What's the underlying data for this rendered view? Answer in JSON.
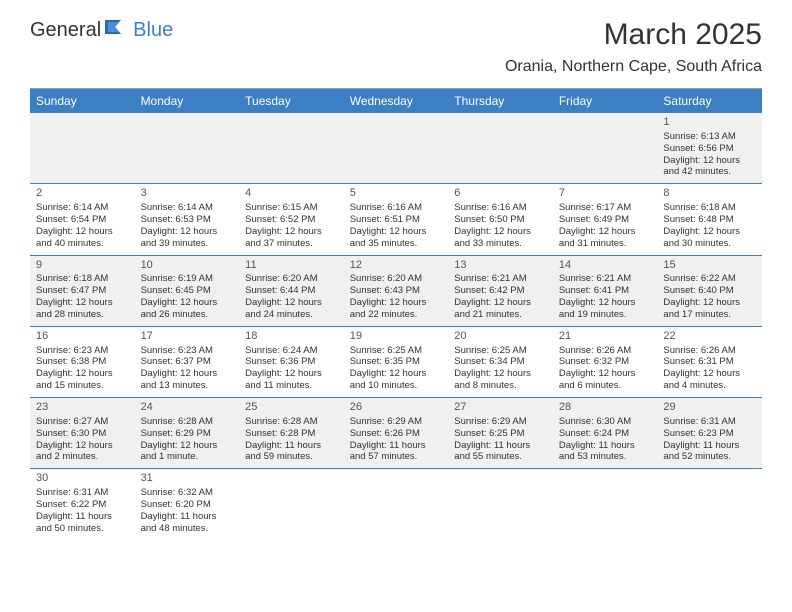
{
  "logo": {
    "general": "General",
    "blue": "Blue"
  },
  "title": "March 2025",
  "location": "Orania, Northern Cape, South Africa",
  "colors": {
    "header_bg": "#3b7fc4",
    "alt_row": "#f0f0f0",
    "border": "#3b7fc4"
  },
  "day_names": [
    "Sunday",
    "Monday",
    "Tuesday",
    "Wednesday",
    "Thursday",
    "Friday",
    "Saturday"
  ],
  "weeks": [
    {
      "alt": true,
      "days": [
        null,
        null,
        null,
        null,
        null,
        null,
        {
          "n": "1",
          "sr": "Sunrise: 6:13 AM",
          "ss": "Sunset: 6:56 PM",
          "dl": "Daylight: 12 hours and 42 minutes."
        }
      ]
    },
    {
      "alt": false,
      "days": [
        {
          "n": "2",
          "sr": "Sunrise: 6:14 AM",
          "ss": "Sunset: 6:54 PM",
          "dl": "Daylight: 12 hours and 40 minutes."
        },
        {
          "n": "3",
          "sr": "Sunrise: 6:14 AM",
          "ss": "Sunset: 6:53 PM",
          "dl": "Daylight: 12 hours and 39 minutes."
        },
        {
          "n": "4",
          "sr": "Sunrise: 6:15 AM",
          "ss": "Sunset: 6:52 PM",
          "dl": "Daylight: 12 hours and 37 minutes."
        },
        {
          "n": "5",
          "sr": "Sunrise: 6:16 AM",
          "ss": "Sunset: 6:51 PM",
          "dl": "Daylight: 12 hours and 35 minutes."
        },
        {
          "n": "6",
          "sr": "Sunrise: 6:16 AM",
          "ss": "Sunset: 6:50 PM",
          "dl": "Daylight: 12 hours and 33 minutes."
        },
        {
          "n": "7",
          "sr": "Sunrise: 6:17 AM",
          "ss": "Sunset: 6:49 PM",
          "dl": "Daylight: 12 hours and 31 minutes."
        },
        {
          "n": "8",
          "sr": "Sunrise: 6:18 AM",
          "ss": "Sunset: 6:48 PM",
          "dl": "Daylight: 12 hours and 30 minutes."
        }
      ]
    },
    {
      "alt": true,
      "days": [
        {
          "n": "9",
          "sr": "Sunrise: 6:18 AM",
          "ss": "Sunset: 6:47 PM",
          "dl": "Daylight: 12 hours and 28 minutes."
        },
        {
          "n": "10",
          "sr": "Sunrise: 6:19 AM",
          "ss": "Sunset: 6:45 PM",
          "dl": "Daylight: 12 hours and 26 minutes."
        },
        {
          "n": "11",
          "sr": "Sunrise: 6:20 AM",
          "ss": "Sunset: 6:44 PM",
          "dl": "Daylight: 12 hours and 24 minutes."
        },
        {
          "n": "12",
          "sr": "Sunrise: 6:20 AM",
          "ss": "Sunset: 6:43 PM",
          "dl": "Daylight: 12 hours and 22 minutes."
        },
        {
          "n": "13",
          "sr": "Sunrise: 6:21 AM",
          "ss": "Sunset: 6:42 PM",
          "dl": "Daylight: 12 hours and 21 minutes."
        },
        {
          "n": "14",
          "sr": "Sunrise: 6:21 AM",
          "ss": "Sunset: 6:41 PM",
          "dl": "Daylight: 12 hours and 19 minutes."
        },
        {
          "n": "15",
          "sr": "Sunrise: 6:22 AM",
          "ss": "Sunset: 6:40 PM",
          "dl": "Daylight: 12 hours and 17 minutes."
        }
      ]
    },
    {
      "alt": false,
      "days": [
        {
          "n": "16",
          "sr": "Sunrise: 6:23 AM",
          "ss": "Sunset: 6:38 PM",
          "dl": "Daylight: 12 hours and 15 minutes."
        },
        {
          "n": "17",
          "sr": "Sunrise: 6:23 AM",
          "ss": "Sunset: 6:37 PM",
          "dl": "Daylight: 12 hours and 13 minutes."
        },
        {
          "n": "18",
          "sr": "Sunrise: 6:24 AM",
          "ss": "Sunset: 6:36 PM",
          "dl": "Daylight: 12 hours and 11 minutes."
        },
        {
          "n": "19",
          "sr": "Sunrise: 6:25 AM",
          "ss": "Sunset: 6:35 PM",
          "dl": "Daylight: 12 hours and 10 minutes."
        },
        {
          "n": "20",
          "sr": "Sunrise: 6:25 AM",
          "ss": "Sunset: 6:34 PM",
          "dl": "Daylight: 12 hours and 8 minutes."
        },
        {
          "n": "21",
          "sr": "Sunrise: 6:26 AM",
          "ss": "Sunset: 6:32 PM",
          "dl": "Daylight: 12 hours and 6 minutes."
        },
        {
          "n": "22",
          "sr": "Sunrise: 6:26 AM",
          "ss": "Sunset: 6:31 PM",
          "dl": "Daylight: 12 hours and 4 minutes."
        }
      ]
    },
    {
      "alt": true,
      "days": [
        {
          "n": "23",
          "sr": "Sunrise: 6:27 AM",
          "ss": "Sunset: 6:30 PM",
          "dl": "Daylight: 12 hours and 2 minutes."
        },
        {
          "n": "24",
          "sr": "Sunrise: 6:28 AM",
          "ss": "Sunset: 6:29 PM",
          "dl": "Daylight: 12 hours and 1 minute."
        },
        {
          "n": "25",
          "sr": "Sunrise: 6:28 AM",
          "ss": "Sunset: 6:28 PM",
          "dl": "Daylight: 11 hours and 59 minutes."
        },
        {
          "n": "26",
          "sr": "Sunrise: 6:29 AM",
          "ss": "Sunset: 6:26 PM",
          "dl": "Daylight: 11 hours and 57 minutes."
        },
        {
          "n": "27",
          "sr": "Sunrise: 6:29 AM",
          "ss": "Sunset: 6:25 PM",
          "dl": "Daylight: 11 hours and 55 minutes."
        },
        {
          "n": "28",
          "sr": "Sunrise: 6:30 AM",
          "ss": "Sunset: 6:24 PM",
          "dl": "Daylight: 11 hours and 53 minutes."
        },
        {
          "n": "29",
          "sr": "Sunrise: 6:31 AM",
          "ss": "Sunset: 6:23 PM",
          "dl": "Daylight: 11 hours and 52 minutes."
        }
      ]
    },
    {
      "alt": false,
      "no_border": true,
      "days": [
        {
          "n": "30",
          "sr": "Sunrise: 6:31 AM",
          "ss": "Sunset: 6:22 PM",
          "dl": "Daylight: 11 hours and 50 minutes."
        },
        {
          "n": "31",
          "sr": "Sunrise: 6:32 AM",
          "ss": "Sunset: 6:20 PM",
          "dl": "Daylight: 11 hours and 48 minutes."
        },
        null,
        null,
        null,
        null,
        null
      ]
    }
  ]
}
